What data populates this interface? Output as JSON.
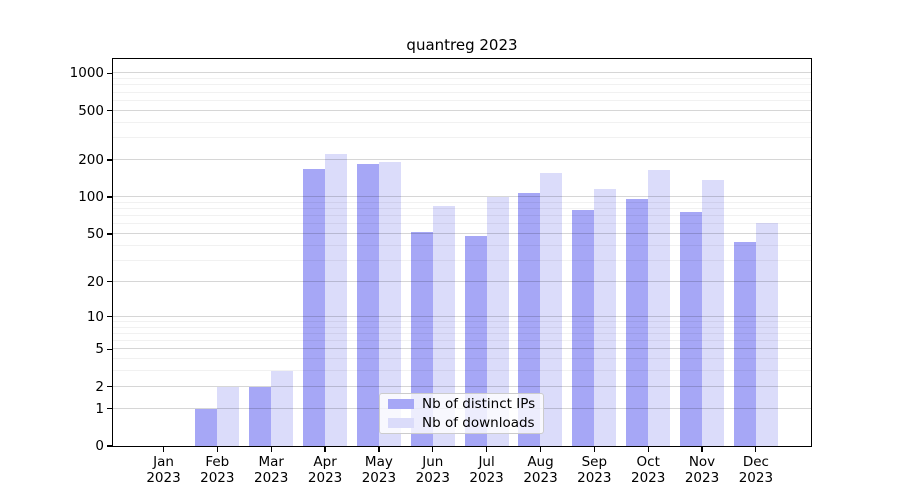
{
  "title": "quantreg 2023",
  "chart_data": {
    "type": "bar",
    "scale": "log1p",
    "title": "quantreg 2023",
    "xlabel": "",
    "ylabel": "",
    "grid": true,
    "legend_position": "bottom-center",
    "categories": [
      {
        "month": "Jan",
        "year": "2023"
      },
      {
        "month": "Feb",
        "year": "2023"
      },
      {
        "month": "Mar",
        "year": "2023"
      },
      {
        "month": "Apr",
        "year": "2023"
      },
      {
        "month": "May",
        "year": "2023"
      },
      {
        "month": "Jun",
        "year": "2023"
      },
      {
        "month": "Jul",
        "year": "2023"
      },
      {
        "month": "Aug",
        "year": "2023"
      },
      {
        "month": "Sep",
        "year": "2023"
      },
      {
        "month": "Oct",
        "year": "2023"
      },
      {
        "month": "Nov",
        "year": "2023"
      },
      {
        "month": "Dec",
        "year": "2023"
      }
    ],
    "series": [
      {
        "name": "Nb of distinct IPs",
        "color": "#a6a7f6",
        "values": [
          0,
          1,
          2,
          170,
          184,
          52,
          48,
          108,
          78,
          97,
          75,
          43
        ]
      },
      {
        "name": "Nb of downloads",
        "color": "#dbdcfa",
        "values": [
          0,
          2,
          3,
          224,
          191,
          85,
          100,
          157,
          117,
          165,
          139,
          62
        ]
      }
    ],
    "yticks": [
      0,
      1,
      2,
      5,
      10,
      20,
      50,
      100,
      200,
      500,
      1000
    ],
    "minor_yticks": [
      3,
      4,
      6,
      7,
      8,
      9,
      30,
      40,
      60,
      70,
      80,
      90,
      300,
      400,
      600,
      700,
      800,
      900
    ],
    "ylim": [
      0,
      1300
    ]
  },
  "colors": {
    "distinct_ips": "#a6a7f6",
    "downloads": "#dbdcfa",
    "axis": "#000000",
    "major_grid": "#d6d6d6",
    "minor_grid": "#efefef",
    "background": "#ffffff"
  }
}
